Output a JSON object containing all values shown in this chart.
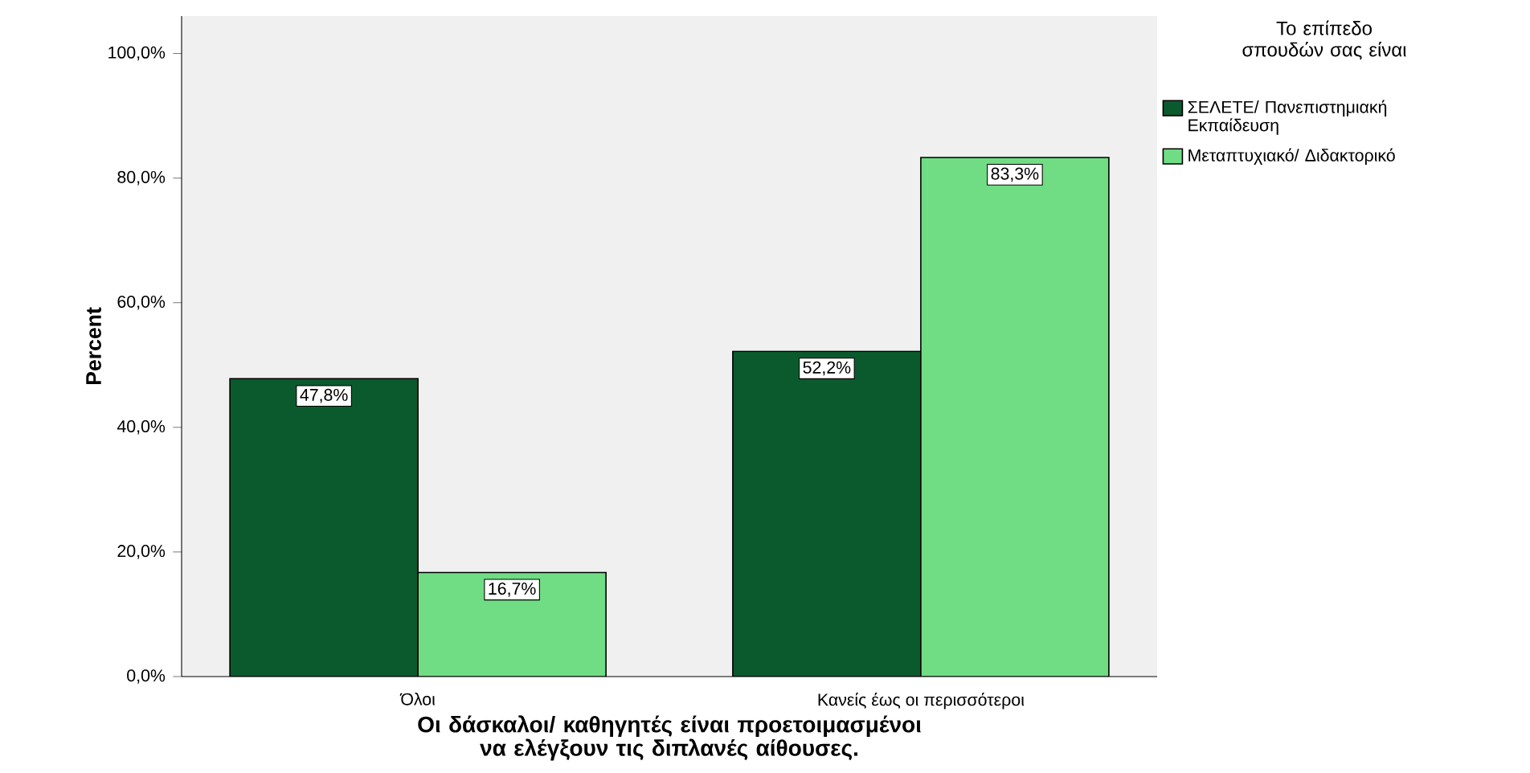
{
  "chart_data": {
    "type": "bar",
    "categories": [
      "Όλοι",
      "Κανείς έως οι περισσότεροι"
    ],
    "series": [
      {
        "name": "ΣΕΛΕΤΕ/ Πανεπιστημιακή Εκπαίδευση",
        "color": "#0b5a2e",
        "values": [
          47.8,
          52.2
        ],
        "value_labels": [
          "47,8%",
          "52,2%"
        ]
      },
      {
        "name": "Μεταπτυχιακό/ Διδακτορικό",
        "color": "#70dc84",
        "values": [
          16.7,
          83.3
        ],
        "value_labels": [
          "16,7%",
          "83,3%"
        ]
      }
    ],
    "xlabel": "Οι δάσκαλοι/ καθηγητές είναι προετοιμασμένοι να ελέγξουν τις διπλανές αίθουσες.",
    "ylabel": "Percent",
    "legend_title": "Το επίπεδο σπουδών σας είναι",
    "legend": "top right",
    "ylim": [
      0,
      106
    ],
    "yticks": [
      {
        "value": 0,
        "label": "0,0%"
      },
      {
        "value": 20,
        "label": "20,0%"
      },
      {
        "value": 40,
        "label": "40,0%"
      },
      {
        "value": 60,
        "label": "60,0%"
      },
      {
        "value": 80,
        "label": "80,0%"
      },
      {
        "value": 100,
        "label": "100,0%"
      }
    ]
  }
}
